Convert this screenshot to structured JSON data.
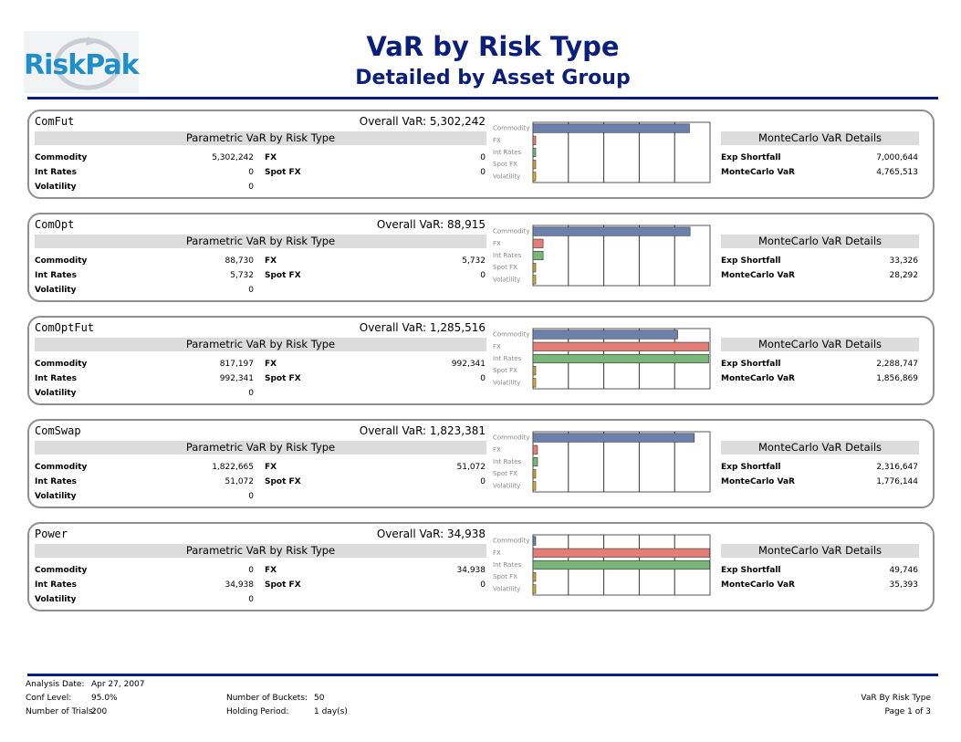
{
  "header": {
    "logo_text": "RiskPak",
    "title": "VaR by Risk Type",
    "subtitle": "Detailed by Asset Group"
  },
  "labels": {
    "overall_var": "Overall VaR:",
    "parametric_header": "Parametric VaR by Risk Type",
    "montecarlo_header": "MonteCarlo VaR Details",
    "commodity": "Commodity",
    "int_rates": "Int Rates",
    "volatility": "Volatility",
    "fx": "FX",
    "spot_fx": "Spot FX",
    "exp_shortfall": "Exp Shortfall",
    "montecarlo_var": "MonteCarlo VaR"
  },
  "colors": {
    "commodity": "#6b80ad",
    "fx": "#e27d77",
    "int_rates": "#7ab57a",
    "spot_fx": "#c9a43b",
    "volatility": "#d9b22b",
    "title": "#0b1e7a",
    "logo": "#1f8fc9"
  },
  "groups": [
    {
      "name": "ComFut",
      "overall_var": "5,302,242",
      "commodity": "5,302,242",
      "int_rates": "0",
      "volatility": "0",
      "fx": "0",
      "spot_fx": "0",
      "exp_shortfall": "7,000,644",
      "montecarlo_var": "4,765,513"
    },
    {
      "name": "ComOpt",
      "overall_var": "88,915",
      "commodity": "88,730",
      "int_rates": "5,732",
      "volatility": "0",
      "fx": "5,732",
      "spot_fx": "0",
      "exp_shortfall": "33,326",
      "montecarlo_var": "28,292"
    },
    {
      "name": "ComOptFut",
      "overall_var": "1,285,516",
      "commodity": "817,197",
      "int_rates": "992,341",
      "volatility": "0",
      "fx": "992,341",
      "spot_fx": "0",
      "exp_shortfall": "2,288,747",
      "montecarlo_var": "1,856,869"
    },
    {
      "name": "ComSwap",
      "overall_var": "1,823,381",
      "commodity": "1,822,665",
      "int_rates": "51,072",
      "volatility": "0",
      "fx": "51,072",
      "spot_fx": "0",
      "exp_shortfall": "2,316,647",
      "montecarlo_var": "1,776,144"
    },
    {
      "name": "Power",
      "overall_var": "34,938",
      "commodity": "0",
      "int_rates": "34,938",
      "volatility": "0",
      "fx": "34,938",
      "spot_fx": "0",
      "exp_shortfall": "49,746",
      "montecarlo_var": "35,393"
    }
  ],
  "chart_data": [
    {
      "type": "bar",
      "orientation": "horizontal",
      "categories": [
        "Commodity",
        "FX",
        "Int Rates",
        "Spot FX",
        "Volatility"
      ],
      "values": [
        5302242,
        0,
        0,
        0,
        0
      ],
      "xlim": [
        0,
        6000000
      ],
      "grid": true
    },
    {
      "type": "bar",
      "orientation": "horizontal",
      "categories": [
        "Commodity",
        "FX",
        "Int Rates",
        "Spot FX",
        "Volatility"
      ],
      "values": [
        88730,
        5732,
        5732,
        0,
        0
      ],
      "xlim": [
        0,
        100000
      ],
      "grid": true
    },
    {
      "type": "bar",
      "orientation": "horizontal",
      "categories": [
        "Commodity",
        "FX",
        "Int Rates",
        "Spot FX",
        "Volatility"
      ],
      "values": [
        817197,
        992341,
        992341,
        0,
        0
      ],
      "xlim": [
        0,
        1000000
      ],
      "grid": true
    },
    {
      "type": "bar",
      "orientation": "horizontal",
      "categories": [
        "Commodity",
        "FX",
        "Int Rates",
        "Spot FX",
        "Volatility"
      ],
      "values": [
        1822665,
        51072,
        51072,
        0,
        0
      ],
      "xlim": [
        0,
        2000000
      ],
      "grid": true
    },
    {
      "type": "bar",
      "orientation": "horizontal",
      "categories": [
        "Commodity",
        "FX",
        "Int Rates",
        "Spot FX",
        "Volatility"
      ],
      "values": [
        0,
        34938,
        34938,
        0,
        0
      ],
      "xlim": [
        0,
        35000
      ],
      "grid": true
    }
  ],
  "footer": {
    "analysis_date_label": "Analysis Date:",
    "analysis_date": "Apr 27, 2007",
    "conf_level_label": "Conf Level:",
    "conf_level": "95.0%",
    "num_trials_label": "Number of Trials:",
    "num_trials": "200",
    "num_buckets_label": "Number of Buckets:",
    "num_buckets": "50",
    "holding_period_label": "Holding Period:",
    "holding_period": "1 day(s)",
    "report_name": "VaR By Risk Type",
    "page": "Page 1 of 3"
  }
}
